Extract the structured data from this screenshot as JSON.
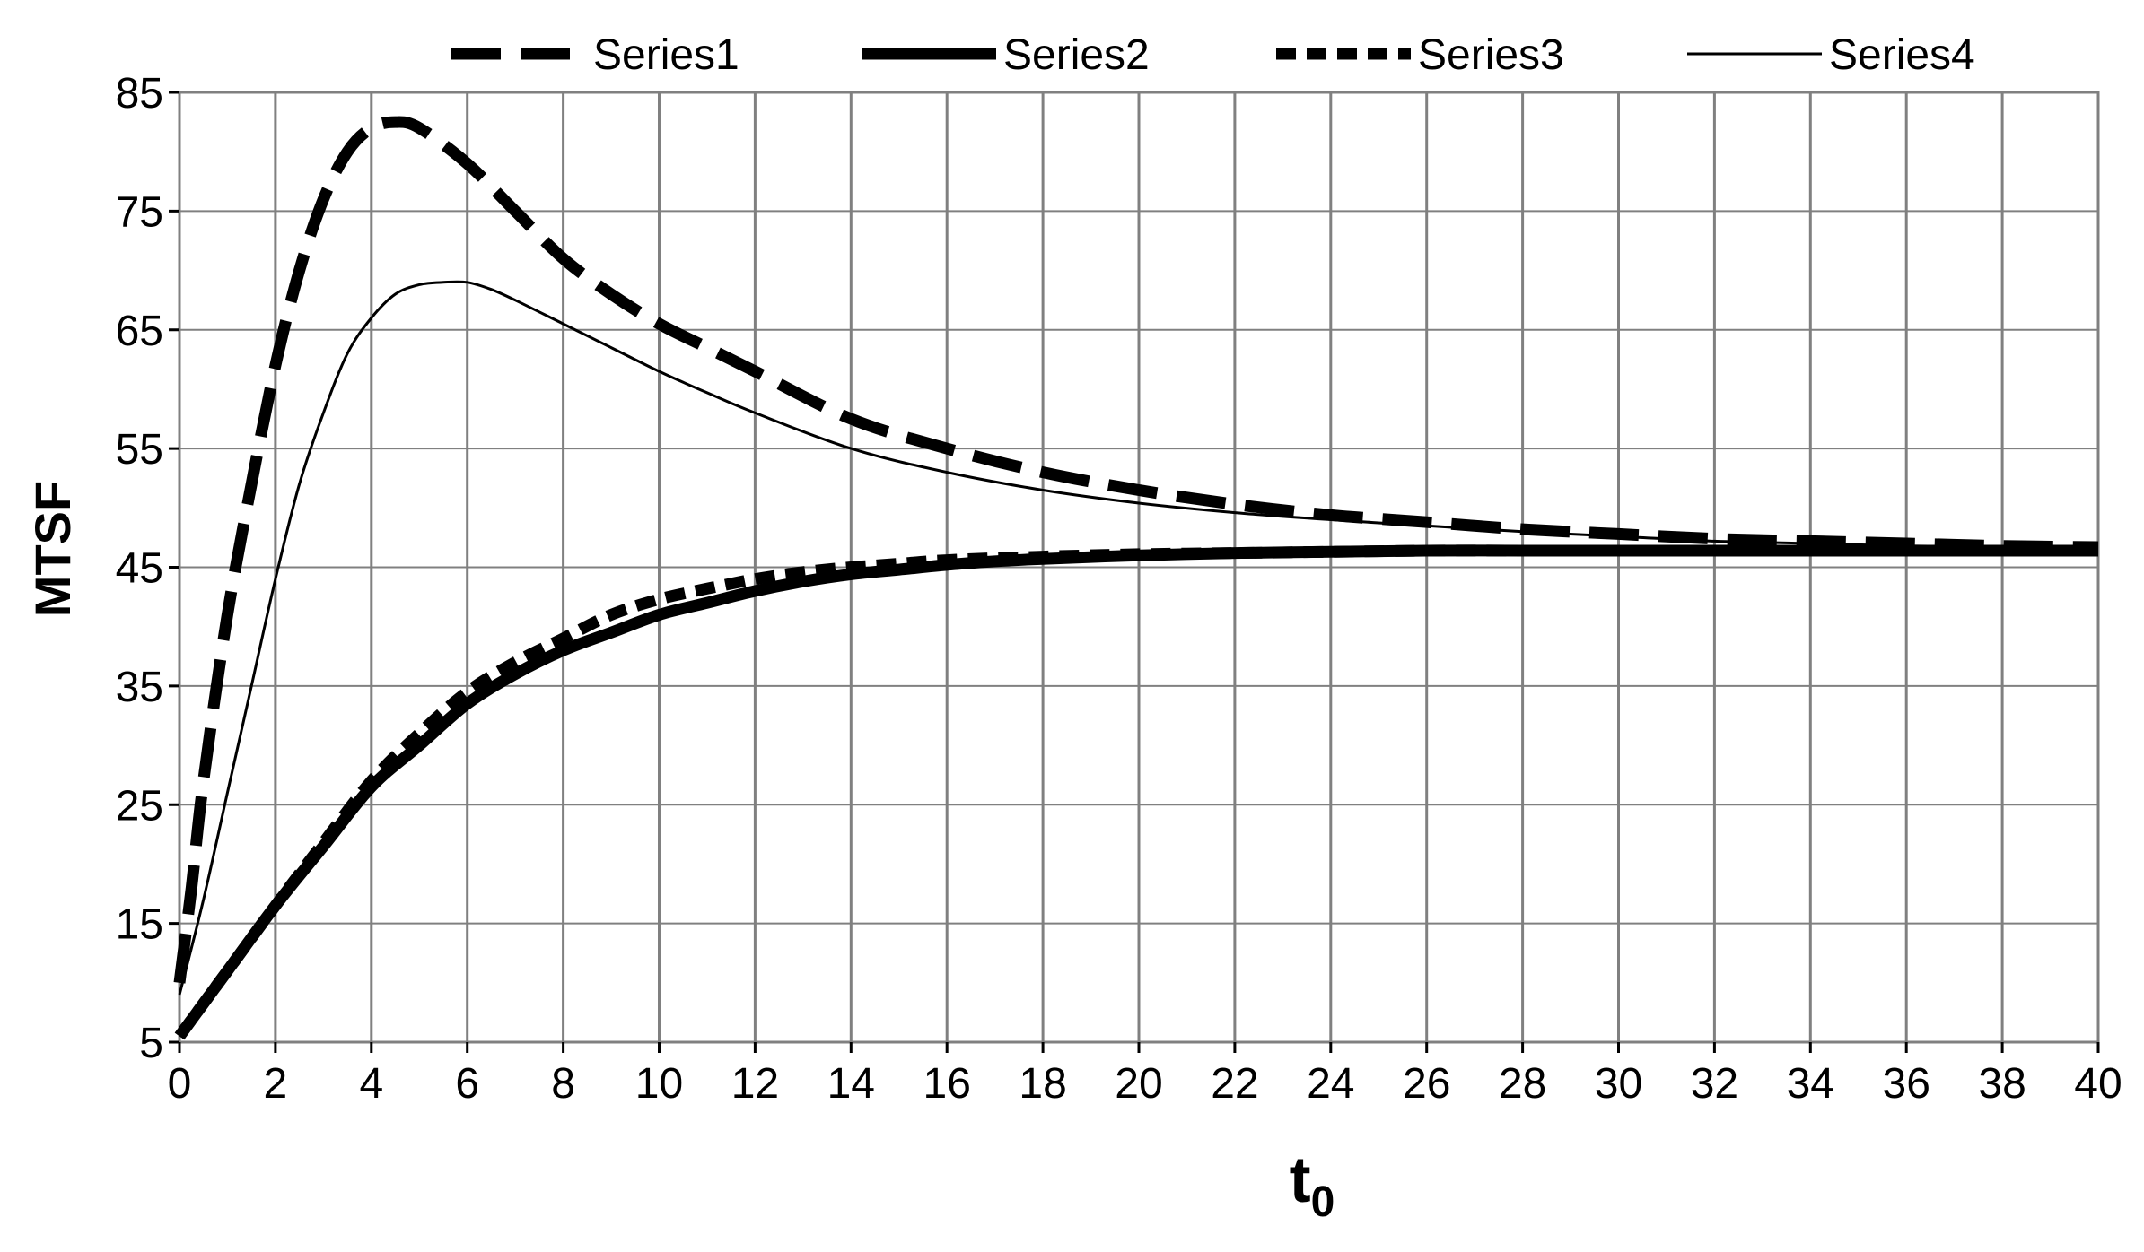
{
  "chart_data": {
    "type": "line",
    "xlabel": "t",
    "xlabel_subscript": "0",
    "ylabel": "MTSF",
    "xlim": [
      0,
      40
    ],
    "ylim": [
      5,
      85
    ],
    "xticks": [
      0,
      2,
      4,
      6,
      8,
      10,
      12,
      14,
      16,
      18,
      20,
      22,
      24,
      26,
      28,
      30,
      32,
      34,
      36,
      38,
      40
    ],
    "yticks": [
      5,
      15,
      25,
      35,
      45,
      55,
      65,
      75,
      85
    ],
    "grid": true,
    "legend_position": "top",
    "series": [
      {
        "name": "Series1",
        "style": "long-dash-thick",
        "x": [
          0,
          0.25,
          0.5,
          1,
          1.5,
          2,
          2.5,
          3,
          3.5,
          4,
          4.5,
          5,
          6,
          7,
          8,
          9,
          10,
          11,
          12,
          14,
          16,
          18,
          20,
          22,
          24,
          26,
          28,
          30,
          32,
          34,
          36,
          38,
          40
        ],
        "y": [
          10,
          18,
          27,
          41,
          52,
          62,
          70,
          76,
          80,
          82,
          82.5,
          82,
          79,
          75,
          71,
          68,
          65.5,
          63.5,
          61.5,
          57.5,
          55,
          53,
          51.5,
          50.3,
          49.4,
          48.8,
          48.2,
          47.8,
          47.4,
          47.2,
          47,
          46.8,
          46.7
        ]
      },
      {
        "name": "Series2",
        "style": "solid-thick",
        "x": [
          0,
          1,
          2,
          3,
          4,
          5,
          6,
          7,
          8,
          9,
          10,
          11,
          12,
          13,
          14,
          15,
          16,
          17,
          18,
          20,
          22,
          24,
          26,
          28,
          30,
          32,
          34,
          36,
          38,
          40
        ],
        "y": [
          5.5,
          11,
          16.5,
          21.5,
          26.5,
          30,
          33.5,
          36,
          38,
          39.5,
          41,
          42,
          43,
          43.8,
          44.4,
          44.8,
          45.2,
          45.5,
          45.7,
          46,
          46.2,
          46.3,
          46.4,
          46.4,
          46.4,
          46.4,
          46.4,
          46.4,
          46.4,
          46.4
        ]
      },
      {
        "name": "Series3",
        "style": "short-dash-thick",
        "x": [
          0,
          1,
          2,
          3,
          4,
          5,
          6,
          7,
          8,
          9,
          10,
          11,
          12,
          13,
          14,
          15,
          16,
          18,
          20,
          22,
          24,
          26,
          28,
          30,
          32,
          34,
          36,
          38,
          40
        ],
        "y": [
          5.5,
          11,
          16.5,
          21.8,
          27,
          31,
          34.5,
          37,
          39,
          41,
          42.3,
          43.2,
          44,
          44.6,
          45,
          45.3,
          45.6,
          45.9,
          46.1,
          46.2,
          46.3,
          46.4,
          46.4,
          46.4,
          46.4,
          46.4,
          46.4,
          46.4,
          46.4
        ]
      },
      {
        "name": "Series4",
        "style": "solid-thin",
        "x": [
          0,
          0.5,
          1,
          1.5,
          2,
          2.5,
          3,
          3.5,
          4,
          4.5,
          5,
          5.5,
          6,
          6.5,
          7,
          8,
          9,
          10,
          11,
          12,
          14,
          16,
          18,
          20,
          22,
          24,
          26,
          28,
          30,
          32,
          34,
          36,
          38,
          40
        ],
        "y": [
          9,
          17,
          26,
          35,
          44,
          52,
          58,
          63,
          66,
          68,
          68.8,
          69,
          69,
          68.4,
          67.5,
          65.5,
          63.5,
          61.5,
          59.7,
          58,
          55,
          53,
          51.5,
          50.4,
          49.6,
          49,
          48.5,
          48,
          47.6,
          47.2,
          47,
          46.8,
          46.7,
          46.6
        ]
      }
    ]
  }
}
